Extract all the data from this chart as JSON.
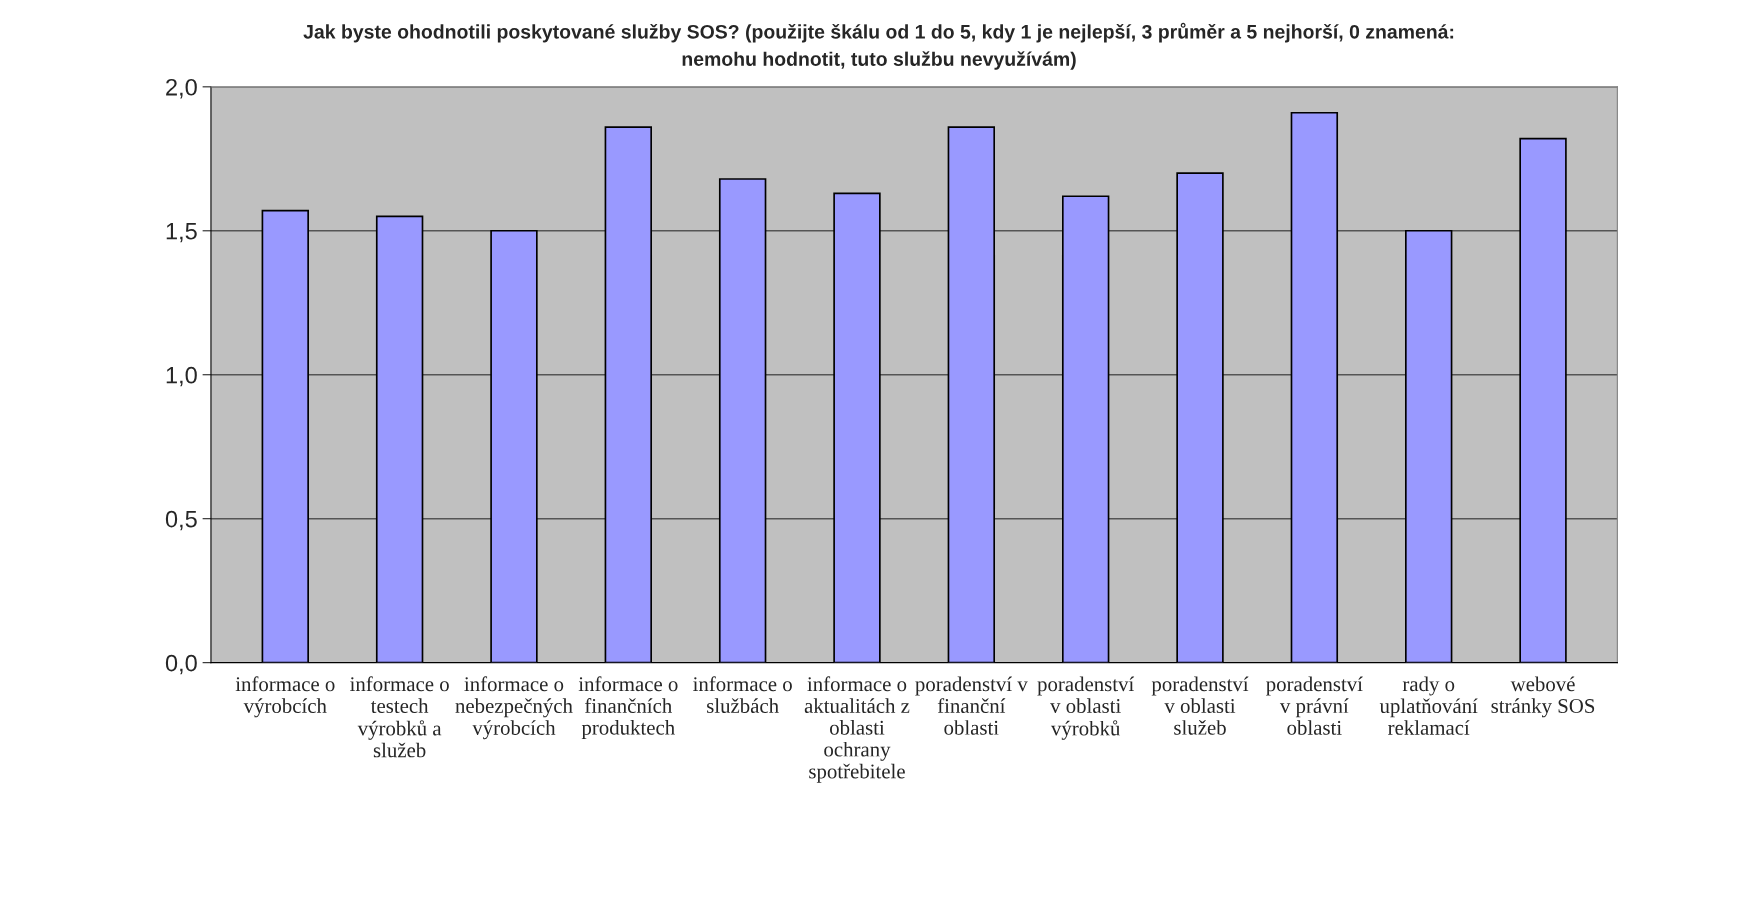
{
  "chart_data": {
    "type": "bar",
    "title": "Jak byste ohodnotili poskytované služby SOS? (použijte škálu od 1 do 5, kdy 1 je nejlepší, 3 průměr a 5 nejhorší, 0 znamená:\nnemohu hodnotit, tuto službu nevyužívám)",
    "categories": [
      "informace o\nvýrobcích",
      "informace o\ntestech\nvýrobků a\nslužeb",
      "informace o\nnebezpečných\nvýrobcích",
      "informace o\nfinančních\nproduktech",
      "informace o\nslužbách",
      "informace o\naktualitách z\noblasti\nochrany\nspotřebitele",
      "poradenství v\nfinanční\noblasti",
      "poradenství\nv oblasti\nvýrobků",
      "poradenství\nv oblasti\nslužeb",
      "poradenství\nv právní\noblasti",
      "rady o\nuplatňování\nreklamací",
      "webové\nstránky SOS"
    ],
    "values": [
      1.57,
      1.55,
      1.5,
      1.86,
      1.68,
      1.63,
      1.86,
      1.62,
      1.7,
      1.91,
      1.5,
      1.82
    ],
    "color": "#9999ff",
    "ylim": [
      0,
      2
    ],
    "yticks": [
      {
        "value": 0,
        "label": "0,0"
      },
      {
        "value": 0.5,
        "label": "0,5"
      },
      {
        "value": 1,
        "label": "1,0"
      },
      {
        "value": 1.5,
        "label": "1,5"
      },
      {
        "value": 2,
        "label": "2,0"
      }
    ],
    "grid": "y",
    "legend": false
  }
}
